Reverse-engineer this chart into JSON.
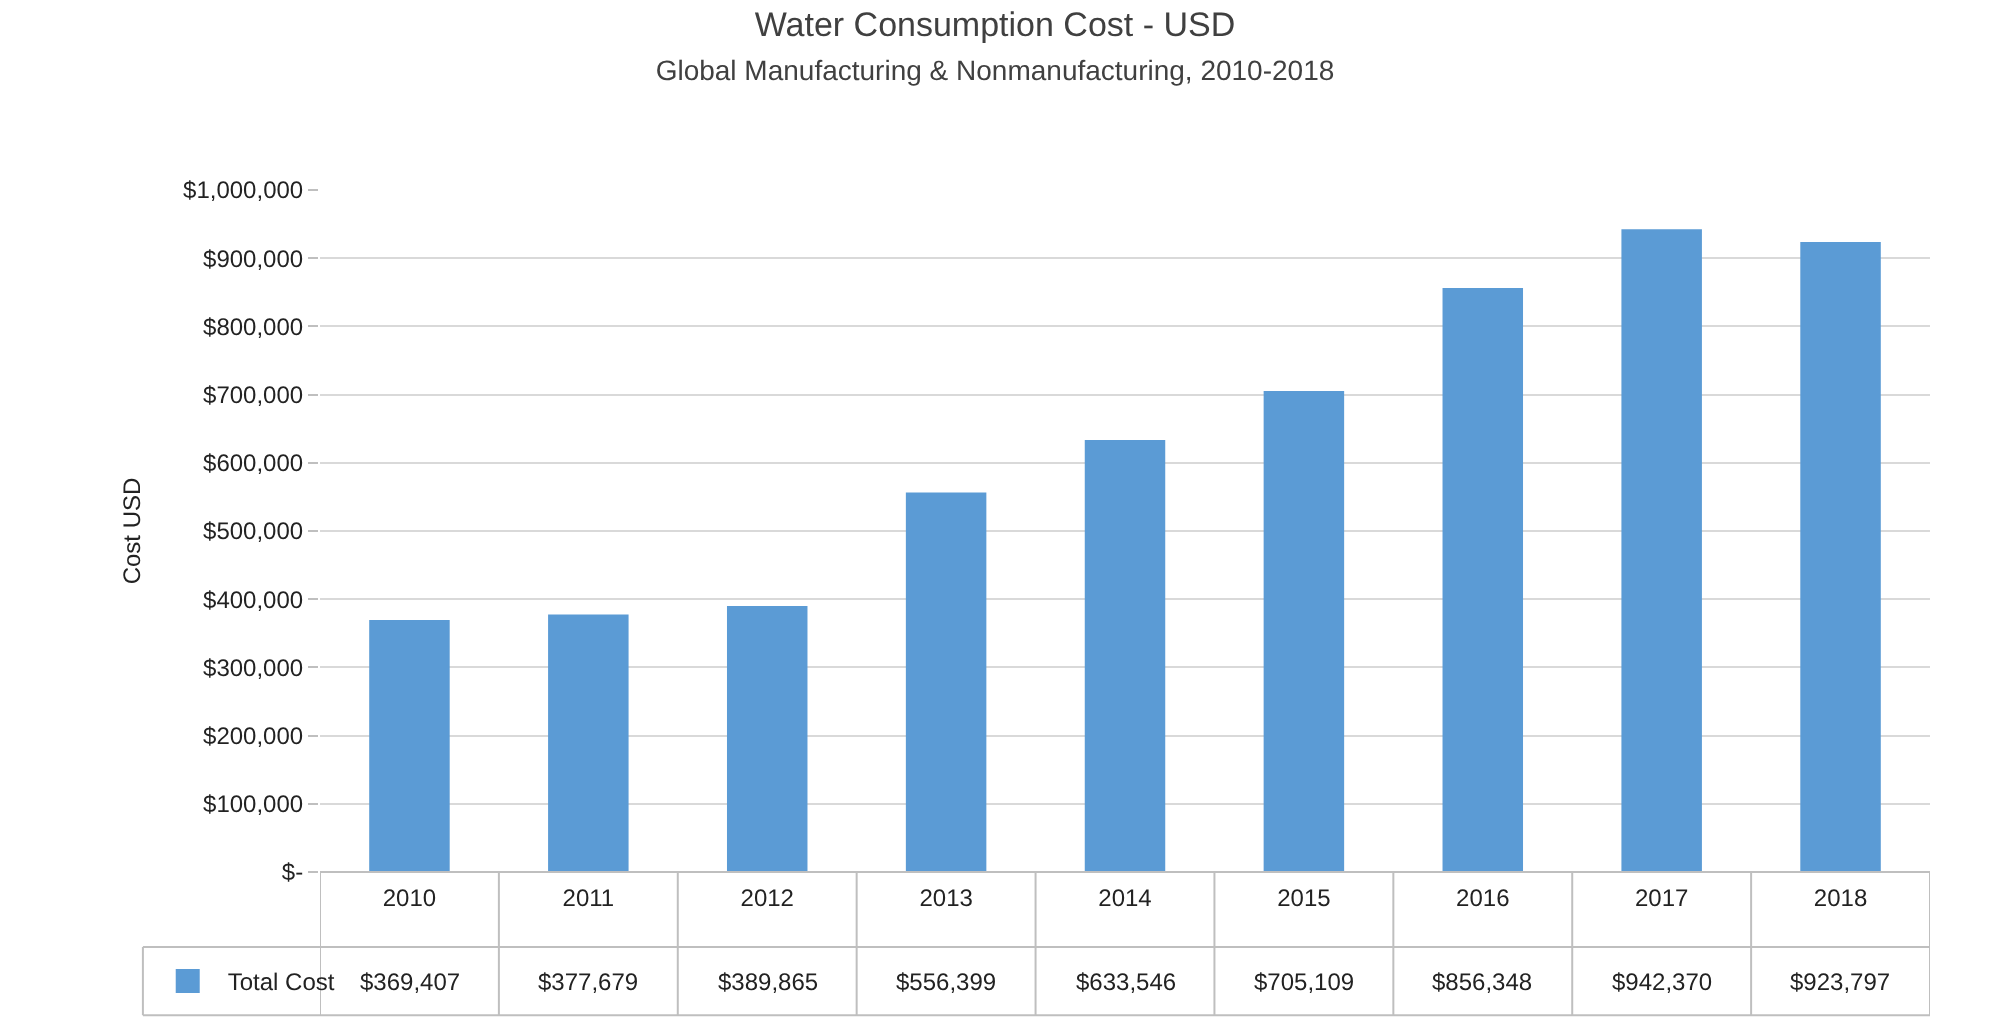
{
  "chart_data": {
    "type": "bar",
    "title": "Water Consumption Cost - USD",
    "subtitle": "Global Manufacturing & Nonmanufacturing, 2010-2018",
    "ylabel": "Cost USD",
    "categories": [
      "2010",
      "2011",
      "2012",
      "2013",
      "2014",
      "2015",
      "2016",
      "2017",
      "2018"
    ],
    "series": [
      {
        "name": "Total Cost",
        "color": "#5b9bd5",
        "values": [
          369407,
          377679,
          389865,
          556399,
          633546,
          705109,
          856348,
          942370,
          923797
        ],
        "value_labels": [
          "$369,407",
          "$377,679",
          "$389,865",
          "$556,399",
          "$633,546",
          "$705,109",
          "$856,348",
          "$942,370",
          "$923,797"
        ]
      }
    ],
    "ylim": [
      0,
      1000000
    ],
    "yticks": [
      {
        "value": 0,
        "label": "$-"
      },
      {
        "value": 100000,
        "label": "$100,000"
      },
      {
        "value": 200000,
        "label": "$200,000"
      },
      {
        "value": 300000,
        "label": "$300,000"
      },
      {
        "value": 400000,
        "label": "$400,000"
      },
      {
        "value": 500000,
        "label": "$500,000"
      },
      {
        "value": 600000,
        "label": "$600,000"
      },
      {
        "value": 700000,
        "label": "$700,000"
      },
      {
        "value": 800000,
        "label": "$800,000"
      },
      {
        "value": 900000,
        "label": "$900,000"
      },
      {
        "value": 1000000,
        "label": "$1,000,000"
      }
    ],
    "grid": "y",
    "legend": "bottom"
  }
}
